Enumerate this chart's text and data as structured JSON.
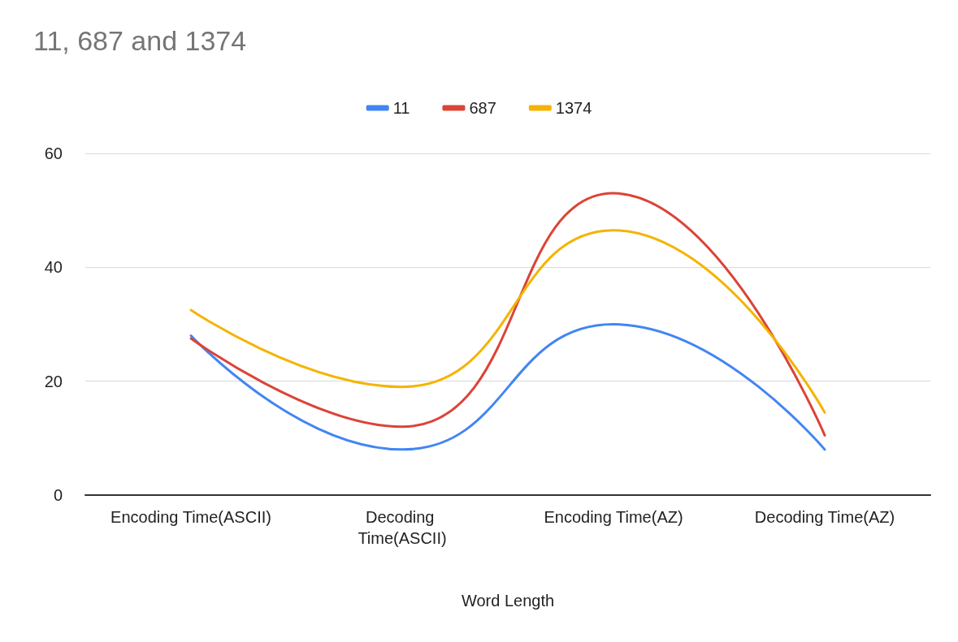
{
  "chart_data": {
    "type": "line",
    "title": "11, 687 and 1374",
    "xlabel": "Word Length",
    "categories": [
      "Encoding Time(ASCII)",
      "Decoding Time(ASCII)",
      "Encoding Time(AZ)",
      "Decoding Time(AZ)"
    ],
    "series": [
      {
        "name": "11",
        "color": "#4285f4",
        "values": [
          28,
          8,
          30,
          8
        ]
      },
      {
        "name": "687",
        "color": "#db4437",
        "values": [
          27.5,
          12,
          53,
          10.5
        ]
      },
      {
        "name": "1374",
        "color": "#f4b400",
        "values": [
          32.5,
          19,
          46.5,
          14.5
        ]
      }
    ],
    "ylim": [
      0,
      60
    ],
    "yticks": [
      0,
      20,
      40,
      60
    ],
    "grid": "y",
    "legend": "top",
    "marker": "none",
    "line_style": "solid"
  }
}
